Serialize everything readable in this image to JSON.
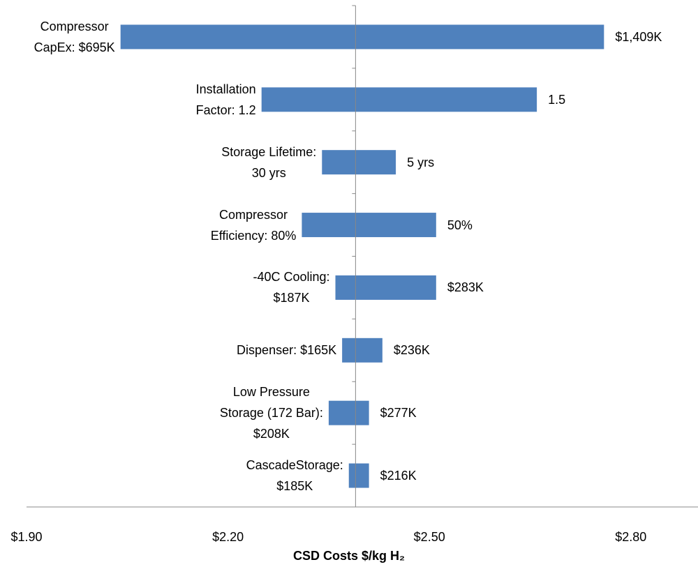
{
  "chart_data": {
    "type": "tornado",
    "x_label": "CSD Costs $/kg H₂",
    "baseline": 2.39,
    "categories": [
      "Compressor\nCapEx: $695K",
      "Installation\nFactor: 1.2",
      "Storage Lifetime:\n30 yrs",
      "Compressor\nEfficiency: 80%",
      "-40C Cooling:\n$187K",
      "Dispenser: $165K",
      "Low Pressure\nStorage (172 Bar):\n$208K",
      "CascadeStorage:\n$185K"
    ],
    "high_labels": [
      "$1,409K",
      "1.5",
      "5 yrs",
      "50%",
      "$283K",
      "$236K",
      "$277K",
      "$216K"
    ],
    "low": [
      2.04,
      2.25,
      2.34,
      2.31,
      2.36,
      2.37,
      2.35,
      2.38
    ],
    "high": [
      2.76,
      2.66,
      2.45,
      2.51,
      2.51,
      2.43,
      2.41,
      2.41
    ],
    "color": "#4f81bd",
    "xlim": [
      1.9,
      2.9
    ],
    "xticks": [
      {
        "value": 1.9,
        "label": "$1.90"
      },
      {
        "value": 2.2,
        "label": "$2.20"
      },
      {
        "value": 2.5,
        "label": "$2.50"
      },
      {
        "value": 2.8,
        "label": "$2.80"
      }
    ]
  }
}
